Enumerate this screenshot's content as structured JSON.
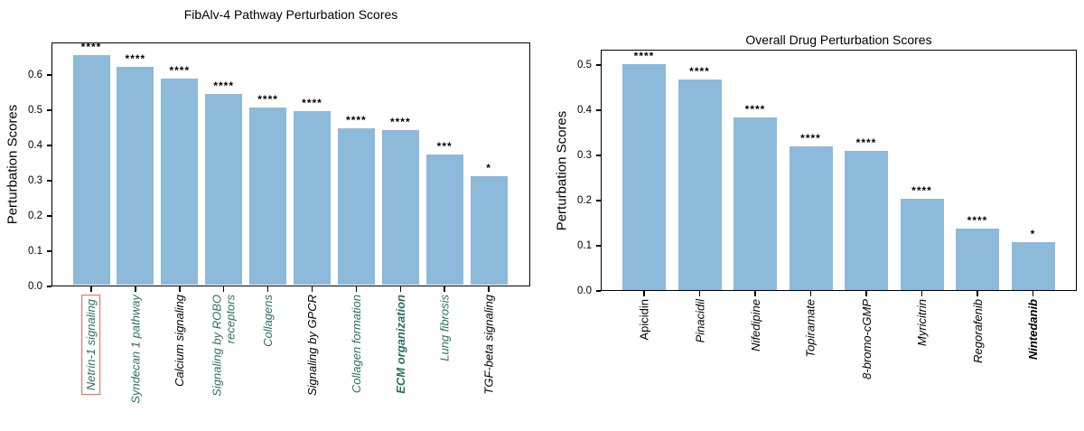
{
  "figure": {
    "background_color": "#ffffff",
    "bar_color": "#8DB9DA",
    "axis_color": "#000000",
    "highlight_box_color": "#E0604C",
    "pathway_label_teal": "#2B6E63",
    "label_black": "#000000"
  },
  "chart_data": [
    {
      "type": "bar",
      "title": "FibAlv-4 Pathway Perturbation Scores",
      "xlabel": "",
      "ylabel": "Perturbation Scores",
      "ylim": [
        0,
        0.692
      ],
      "yticks": [
        0.0,
        0.1,
        0.2,
        0.3,
        0.4,
        0.5,
        0.6
      ],
      "grid": false,
      "legend": "none",
      "bar_color": "#8DB9DA",
      "categories": [
        "Netrin-1 signaling",
        "Syndecan 1 pathway",
        "Calcium signaling",
        "Signaling by ROBO\nreceptors",
        "Collagens",
        "Signaling by GPCR",
        "Collagen formation",
        "ECM organization",
        "Lung fibrosis",
        "TGF-beta signaling"
      ],
      "values": [
        0.655,
        0.623,
        0.59,
        0.545,
        0.508,
        0.498,
        0.449,
        0.443,
        0.374,
        0.312
      ],
      "significance": [
        "****",
        "****",
        "****",
        "****",
        "****",
        "****",
        "****",
        "****",
        "***",
        "*"
      ],
      "label_styles": [
        {
          "color": "#2B6E63",
          "italic": true,
          "bold": false,
          "highlighted": true
        },
        {
          "color": "#2B6E63",
          "italic": true,
          "bold": false,
          "highlighted": false
        },
        {
          "color": "#000000",
          "italic": true,
          "bold": false,
          "highlighted": false
        },
        {
          "color": "#2B6E63",
          "italic": true,
          "bold": false,
          "highlighted": false
        },
        {
          "color": "#2B6E63",
          "italic": true,
          "bold": false,
          "highlighted": false
        },
        {
          "color": "#000000",
          "italic": true,
          "bold": false,
          "highlighted": false
        },
        {
          "color": "#2B6E63",
          "italic": true,
          "bold": false,
          "highlighted": false
        },
        {
          "color": "#2B6E63",
          "italic": true,
          "bold": true,
          "highlighted": false
        },
        {
          "color": "#2B6E63",
          "italic": true,
          "bold": false,
          "highlighted": false
        },
        {
          "color": "#000000",
          "italic": true,
          "bold": false,
          "highlighted": false
        }
      ]
    },
    {
      "type": "bar",
      "title": "Overall Drug Perturbation Scores",
      "xlabel": "",
      "ylabel": "Perturbation Scores",
      "ylim": [
        0,
        0.534
      ],
      "yticks": [
        0.0,
        0.1,
        0.2,
        0.3,
        0.4,
        0.5
      ],
      "grid": false,
      "legend": "none",
      "bar_color": "#8DB9DA",
      "categories": [
        "Apicidin",
        "Pinacidil",
        "Nifedipine",
        "Topiramate",
        "8-bromo-cGMP",
        "Myricitrin",
        "Regorafenib",
        "Nintedanib"
      ],
      "values": [
        0.503,
        0.468,
        0.385,
        0.32,
        0.31,
        0.204,
        0.139,
        0.108
      ],
      "significance": [
        "****",
        "****",
        "****",
        "****",
        "****",
        "****",
        "****",
        "*"
      ],
      "label_styles": [
        {
          "color": "#000000",
          "italic": false,
          "bold": false,
          "highlighted": false
        },
        {
          "color": "#000000",
          "italic": true,
          "bold": false,
          "highlighted": false
        },
        {
          "color": "#000000",
          "italic": true,
          "bold": false,
          "highlighted": false
        },
        {
          "color": "#000000",
          "italic": true,
          "bold": false,
          "highlighted": false
        },
        {
          "color": "#000000",
          "italic": true,
          "bold": false,
          "highlighted": false
        },
        {
          "color": "#000000",
          "italic": true,
          "bold": false,
          "highlighted": false
        },
        {
          "color": "#000000",
          "italic": true,
          "bold": false,
          "highlighted": false
        },
        {
          "color": "#000000",
          "italic": true,
          "bold": true,
          "highlighted": false
        }
      ]
    }
  ]
}
